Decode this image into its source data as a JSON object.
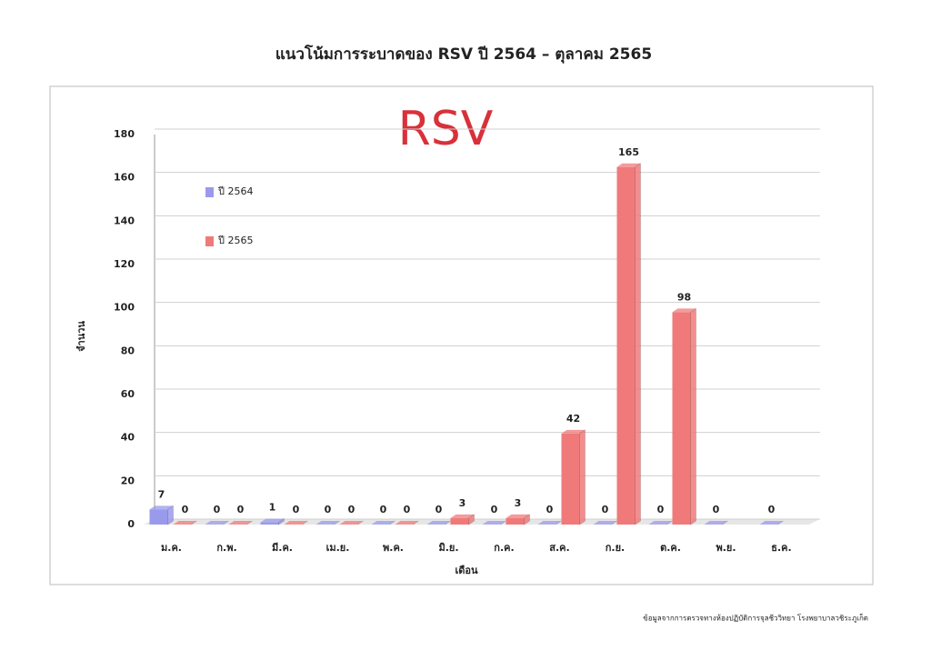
{
  "chart_data": {
    "type": "bar",
    "title": "แนวโน้มการระบาดของ RSV ปี 2564 – ตุลาคม 2565",
    "annotation": "RSV",
    "y_label": "จำนวน",
    "x_label": "เดือน",
    "source": "ข้อมูลจากการตรวจทางห้องปฏิบัติการจุลชีววิทยา โรงพยาบาลวชิระภูเก็ต",
    "categories": [
      "ม.ค.",
      "ก.พ.",
      "มี.ค.",
      "เม.ย.",
      "พ.ค.",
      "มิ.ย.",
      "ก.ค.",
      "ส.ค.",
      "ก.ย.",
      "ต.ค.",
      "พ.ย.",
      "ธ.ค."
    ],
    "series": [
      {
        "name": "ปี 2564",
        "color": "#9a9aec",
        "values": [
          7,
          0,
          1,
          0,
          0,
          0,
          0,
          0,
          0,
          0,
          0,
          0
        ]
      },
      {
        "name": "ปี 2565",
        "color": "#f07a7a",
        "values": [
          0,
          0,
          0,
          0,
          0,
          3,
          3,
          42,
          165,
          98,
          null,
          null
        ]
      }
    ],
    "ylim": [
      0,
      180
    ],
    "yticks": [
      0,
      20,
      40,
      60,
      80,
      100,
      120,
      140,
      160,
      180
    ],
    "grid": true
  }
}
